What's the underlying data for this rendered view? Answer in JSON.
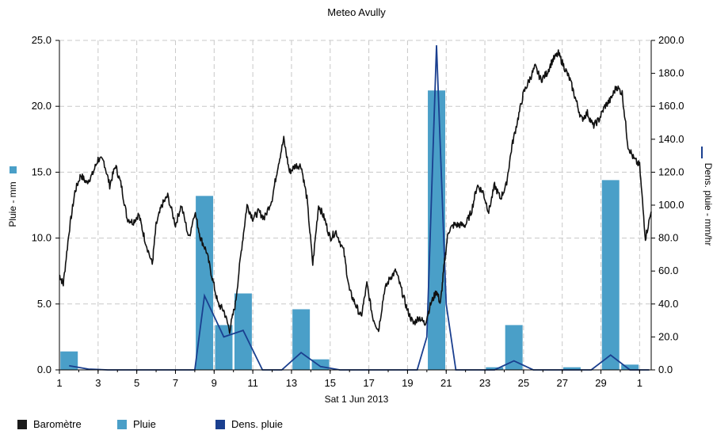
{
  "chart_data": {
    "type": "bar+line",
    "title": "Meteo  Avully",
    "xlabel": "Sat 1 Jun 2013",
    "ylabel_left": "Pluie - mm",
    "ylabel_right": "Dens. pluie - mm/hr",
    "x_ticks": [
      "1",
      "3",
      "5",
      "7",
      "9",
      "11",
      "13",
      "15",
      "17",
      "19",
      "21",
      "23",
      "25",
      "27",
      "29",
      "1"
    ],
    "x_range": [
      1,
      31.6
    ],
    "ylim_left": [
      0,
      25
    ],
    "ylim_right": [
      0,
      200
    ],
    "y_ticks_left": [
      "0.0",
      "5.0",
      "10.0",
      "15.0",
      "20.0",
      "25.0"
    ],
    "y_ticks_right": [
      "0.0",
      "20.0",
      "40.0",
      "60.0",
      "80.0",
      "100.0",
      "120.0",
      "140.0",
      "160.0",
      "180.0",
      "200.0"
    ],
    "grid": true,
    "legend_position": "bottom",
    "legend": [
      {
        "label": "Baromètre",
        "color": "#1a1a1a"
      },
      {
        "label": "Pluie",
        "color": "#4a9fc8"
      },
      {
        "label": "Dens. pluie",
        "color": "#1a3f8f"
      }
    ],
    "series": [
      {
        "name": "Pluie",
        "kind": "bar",
        "axis": "left",
        "x": [
          1.5,
          8.5,
          9.5,
          10.5,
          13.5,
          14.5,
          20.5,
          23.5,
          24.5,
          27.5,
          29.5,
          30.5
        ],
        "values": [
          1.4,
          13.2,
          3.4,
          5.8,
          4.6,
          0.8,
          21.2,
          0.2,
          3.4,
          0.2,
          14.4,
          0.4
        ]
      },
      {
        "name": "Dens. pluie",
        "kind": "line",
        "axis": "right",
        "x": [
          1.5,
          2.5,
          3.5,
          7.5,
          8.0,
          8.5,
          9.5,
          10.5,
          11.5,
          12.5,
          13.5,
          14.5,
          15.5,
          19.5,
          20.0,
          20.5,
          21.0,
          21.5,
          23.5,
          24.5,
          25.5,
          28.5,
          29.5,
          30.5,
          31.5
        ],
        "values": [
          2.5,
          0.5,
          0,
          0,
          0,
          45,
          20,
          24,
          0,
          0,
          10.5,
          2,
          0,
          0,
          20,
          197,
          40,
          0,
          0,
          5.5,
          0,
          0,
          9,
          0,
          0
        ]
      },
      {
        "name": "Baromètre",
        "kind": "line",
        "axis": "left",
        "x": [
          1.0,
          1.2,
          1.5,
          1.8,
          2.1,
          2.4,
          2.7,
          3.0,
          3.3,
          3.6,
          3.9,
          4.2,
          4.5,
          4.8,
          5.1,
          5.4,
          5.8,
          6.0,
          6.3,
          6.6,
          7.0,
          7.3,
          7.7,
          8.0,
          8.3,
          8.6,
          8.9,
          9.2,
          9.5,
          9.8,
          10.1,
          10.4,
          10.7,
          11.0,
          11.3,
          11.6,
          12.0,
          12.3,
          12.6,
          12.9,
          13.2,
          13.5,
          13.8,
          14.1,
          14.4,
          14.7,
          15.0,
          15.3,
          15.7,
          16.0,
          16.3,
          16.6,
          16.9,
          17.2,
          17.5,
          17.8,
          18.1,
          18.4,
          18.7,
          19.0,
          19.3,
          19.6,
          19.9,
          20.2,
          20.5,
          20.7,
          20.9,
          21.1,
          21.4,
          21.7,
          22.0,
          22.3,
          22.6,
          22.9,
          23.2,
          23.5,
          23.8,
          24.1,
          24.4,
          24.7,
          25.0,
          25.3,
          25.6,
          25.9,
          26.2,
          26.5,
          26.8,
          27.1,
          27.4,
          27.7,
          28.0,
          28.3,
          28.6,
          28.9,
          29.2,
          29.5,
          29.8,
          30.1,
          30.4,
          30.7,
          31.0,
          31.3,
          31.6
        ],
        "values": [
          7.2,
          6.5,
          10.5,
          13.5,
          14.8,
          14.2,
          14.8,
          16.0,
          15.8,
          14.0,
          15.5,
          14.0,
          11.5,
          11.2,
          11.8,
          10.0,
          8.0,
          11.0,
          12.5,
          13.2,
          11.0,
          12.5,
          10.0,
          12.0,
          10.0,
          9.0,
          7.0,
          5.0,
          4.5,
          3.0,
          5.0,
          9.0,
          12.5,
          11.5,
          12.0,
          11.5,
          13.0,
          15.5,
          17.5,
          15.0,
          15.5,
          15.5,
          13.0,
          8.0,
          12.5,
          11.5,
          10.0,
          10.5,
          9.0,
          6.0,
          5.0,
          4.0,
          6.5,
          4.0,
          3.0,
          6.0,
          7.0,
          7.5,
          6.0,
          4.5,
          3.5,
          4.0,
          3.5,
          5.0,
          6.0,
          5.0,
          8.0,
          10.5,
          11.0,
          11.0,
          11.0,
          12.0,
          14.0,
          13.5,
          12.0,
          14.0,
          13.0,
          14.0,
          17.0,
          19.0,
          21.0,
          22.0,
          23.0,
          22.0,
          22.5,
          23.5,
          24.0,
          23.0,
          22.0,
          20.5,
          19.0,
          19.5,
          18.5,
          19.0,
          20.0,
          20.5,
          21.5,
          21.0,
          17.0,
          16.0,
          15.5,
          10.0,
          12.0
        ]
      }
    ]
  }
}
